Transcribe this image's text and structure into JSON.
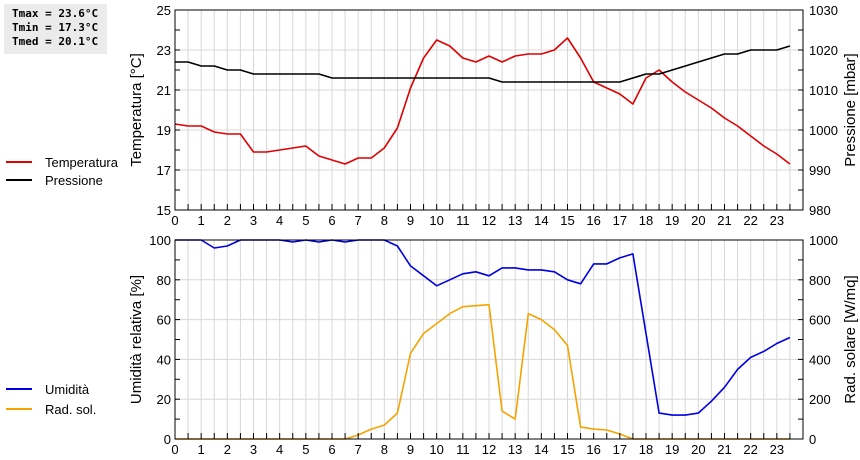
{
  "stats": {
    "tmax": "Tmax = 23.6°C",
    "tmin": "Tmin = 17.3°C",
    "tmed": "Tmed = 20.1°C"
  },
  "legend_top": [
    {
      "label": "Temperatura",
      "color": "#e00000"
    },
    {
      "label": "Pressione",
      "color": "#000000"
    }
  ],
  "legend_bottom": [
    {
      "label": "Umidità",
      "color": "#0000e0"
    },
    {
      "label": "Rad. sol.",
      "color": "#f5a300"
    }
  ],
  "chart_data": [
    {
      "type": "line",
      "title": "",
      "xlabel": "",
      "ylabel": "Temperatura [°C]",
      "y2label": "Pressione [mbar]",
      "xlim": [
        0,
        24
      ],
      "ylim": [
        15,
        25
      ],
      "y2lim": [
        980,
        1030
      ],
      "x_ticks": [
        "0",
        "1",
        "2",
        "3",
        "4",
        "5",
        "6",
        "7",
        "8",
        "9",
        "10",
        "11",
        "12",
        "13",
        "14",
        "15",
        "16",
        "17",
        "18",
        "19",
        "20",
        "21",
        "22",
        "23"
      ],
      "y_ticks": [
        "15",
        "17",
        "19",
        "21",
        "23",
        "25"
      ],
      "y2_ticks": [
        "980",
        "990",
        "1000",
        "1010",
        "1020",
        "1030"
      ],
      "grid": true,
      "series": [
        {
          "name": "Temperatura",
          "axis": "left",
          "color": "#e00000",
          "x": [
            0,
            0.5,
            1,
            1.5,
            2,
            2.5,
            3,
            3.5,
            4,
            4.5,
            5,
            5.5,
            6,
            6.5,
            7,
            7.5,
            8,
            8.5,
            9,
            9.5,
            10,
            10.5,
            11,
            11.5,
            12,
            12.5,
            13,
            13.5,
            14,
            14.5,
            15,
            15.5,
            16,
            16.5,
            17,
            17.5,
            18,
            18.5,
            19,
            19.5,
            20,
            20.5,
            21,
            21.5,
            22,
            22.5,
            23,
            23.5
          ],
          "values": [
            19.3,
            19.2,
            19.2,
            18.9,
            18.8,
            18.8,
            17.9,
            17.9,
            18.0,
            18.1,
            18.2,
            17.7,
            17.5,
            17.3,
            17.6,
            17.6,
            18.1,
            19.1,
            21.1,
            22.6,
            23.5,
            23.2,
            22.6,
            22.4,
            22.7,
            22.4,
            22.7,
            22.8,
            22.8,
            23.0,
            23.6,
            22.6,
            21.4,
            21.1,
            20.8,
            20.3,
            21.6,
            22.0,
            21.4,
            20.9,
            20.5,
            20.1,
            19.6,
            19.2,
            18.7,
            18.2,
            17.8,
            17.3
          ]
        },
        {
          "name": "Pressione",
          "axis": "right",
          "color": "#000000",
          "x": [
            0,
            0.5,
            1,
            1.5,
            2,
            2.5,
            3,
            3.5,
            4,
            4.5,
            5,
            5.5,
            6,
            6.5,
            7,
            7.5,
            8,
            8.5,
            9,
            9.5,
            10,
            10.5,
            11,
            11.5,
            12,
            12.5,
            13,
            13.5,
            14,
            14.5,
            15,
            15.5,
            16,
            16.5,
            17,
            17.5,
            18,
            18.5,
            19,
            19.5,
            20,
            20.5,
            21,
            21.5,
            22,
            22.5,
            23,
            23.5
          ],
          "values": [
            1017,
            1017,
            1016,
            1016,
            1015,
            1015,
            1014,
            1014,
            1014,
            1014,
            1014,
            1014,
            1013,
            1013,
            1013,
            1013,
            1013,
            1013,
            1013,
            1013,
            1013,
            1013,
            1013,
            1013,
            1013,
            1012,
            1012,
            1012,
            1012,
            1012,
            1012,
            1012,
            1012,
            1012,
            1012,
            1013,
            1014,
            1014,
            1015,
            1016,
            1017,
            1018,
            1019,
            1019,
            1020,
            1020,
            1020,
            1021
          ]
        }
      ]
    },
    {
      "type": "line",
      "title": "",
      "xlabel": "",
      "ylabel": "Umidità relativa [%]",
      "y2label": "Rad. solare [W/mq]",
      "xlim": [
        0,
        24
      ],
      "ylim": [
        0,
        100
      ],
      "y2lim": [
        0,
        1000
      ],
      "x_ticks": [
        "0",
        "1",
        "2",
        "3",
        "4",
        "5",
        "6",
        "7",
        "8",
        "9",
        "10",
        "11",
        "12",
        "13",
        "14",
        "15",
        "16",
        "17",
        "18",
        "19",
        "20",
        "21",
        "22",
        "23"
      ],
      "y_ticks": [
        "0",
        "20",
        "40",
        "60",
        "80",
        "100"
      ],
      "y2_ticks": [
        "0",
        "200",
        "400",
        "600",
        "800",
        "1000"
      ],
      "grid": true,
      "series": [
        {
          "name": "Umidità",
          "axis": "left",
          "color": "#0000e0",
          "x": [
            0,
            0.5,
            1,
            1.5,
            2,
            2.5,
            3,
            3.5,
            4,
            4.5,
            5,
            5.5,
            6,
            6.5,
            7,
            7.5,
            8,
            8.5,
            9,
            9.5,
            10,
            10.5,
            11,
            11.5,
            12,
            12.5,
            13,
            13.5,
            14,
            14.5,
            15,
            15.5,
            16,
            16.5,
            17,
            17.5,
            18,
            18.5,
            19,
            19.5,
            20,
            20.5,
            21,
            21.5,
            22,
            22.5,
            23,
            23.5
          ],
          "values": [
            100,
            100,
            100,
            96,
            97,
            100,
            100,
            100,
            100,
            99,
            100,
            99,
            100,
            99,
            100,
            100,
            100,
            97,
            87,
            82,
            77,
            80,
            83,
            84,
            82,
            86,
            86,
            85,
            85,
            84,
            80,
            78,
            88,
            88,
            91,
            93,
            53,
            13,
            12,
            12,
            13,
            19,
            26,
            35,
            41,
            44,
            48,
            51
          ]
        },
        {
          "name": "Rad. sol.",
          "axis": "right",
          "color": "#f5a300",
          "x": [
            0,
            0.5,
            1,
            1.5,
            2,
            2.5,
            3,
            3.5,
            4,
            4.5,
            5,
            5.5,
            6,
            6.5,
            7,
            7.5,
            8,
            8.5,
            9,
            9.5,
            10,
            10.5,
            11,
            11.5,
            12,
            12.5,
            13,
            13.5,
            14,
            14.5,
            15,
            15.5,
            16,
            16.5,
            17,
            17.5,
            18,
            18.5,
            19,
            19.5,
            20,
            20.5,
            21,
            21.5,
            22,
            22.5,
            23,
            23.5
          ],
          "values": [
            0,
            0,
            0,
            0,
            0,
            0,
            0,
            0,
            0,
            0,
            0,
            0,
            0,
            0,
            20,
            50,
            70,
            130,
            430,
            530,
            580,
            630,
            665,
            670,
            675,
            140,
            100,
            630,
            600,
            550,
            470,
            60,
            50,
            45,
            25,
            0,
            0,
            0,
            0,
            0,
            0,
            0,
            0,
            0,
            0,
            0,
            0,
            0
          ]
        }
      ]
    }
  ]
}
